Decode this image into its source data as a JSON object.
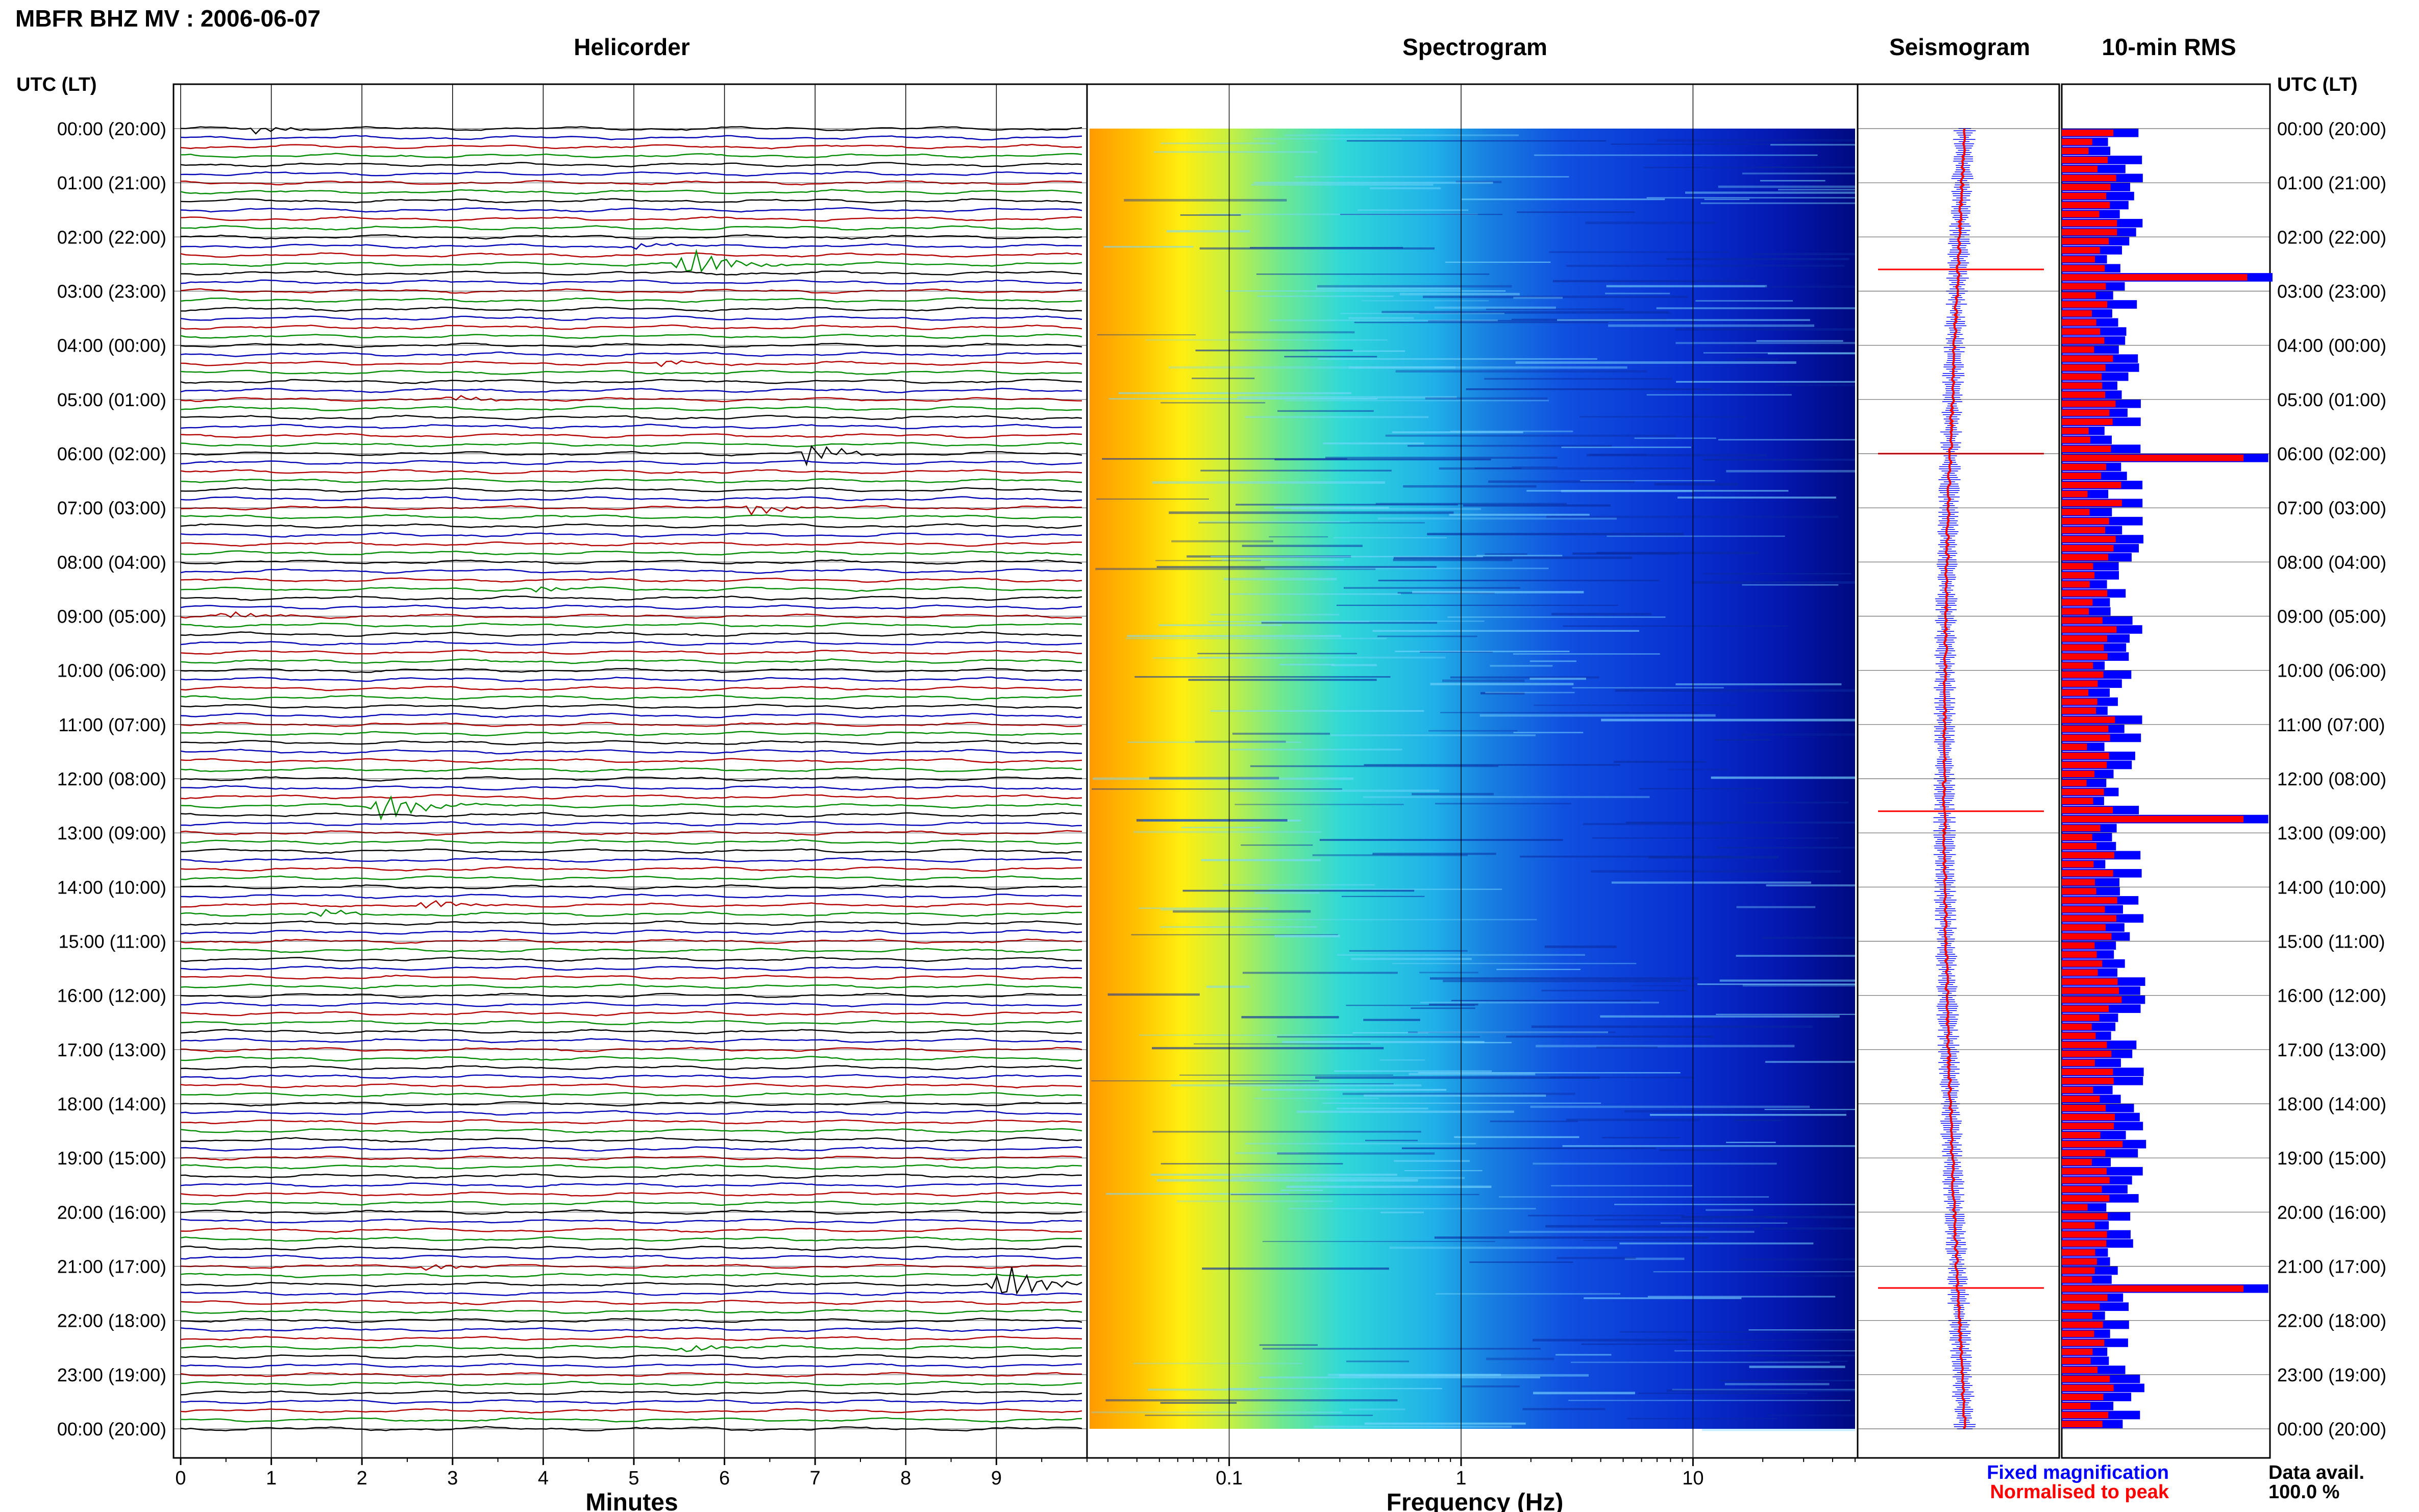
{
  "header": {
    "title": "MBFR BHZ MV : 2006-06-07",
    "utc_lt_label": "UTC (LT)"
  },
  "panels": {
    "helicorder": "Helicorder",
    "spectrogram": "Spectrogram",
    "seismogram": "Seismogram",
    "rms": "10-min RMS"
  },
  "axes": {
    "minutes_label": "Minutes",
    "frequency_label": "Frequency (Hz)",
    "minute_ticks": [
      "0",
      "1",
      "2",
      "3",
      "4",
      "5",
      "6",
      "7",
      "8",
      "9"
    ],
    "frequency_ticks": [
      "0.1",
      "1",
      "10"
    ]
  },
  "legend": {
    "fixed": "Fixed magnification",
    "normalised": "Normalised to peak",
    "data_avail_label": "Data avail.",
    "data_avail_value": "100.0 %"
  },
  "colors": {
    "trace_cycle": [
      "#000000",
      "#0000b4",
      "#b40000",
      "#008c00"
    ],
    "fixed": "#0000ff",
    "normalised": "#ff0000"
  },
  "chart_data": {
    "type": "helicorder",
    "time_labels": [
      "00:00 (20:00)",
      "01:00 (21:00)",
      "02:00 (22:00)",
      "03:00 (23:00)",
      "04:00 (00:00)",
      "05:00 (01:00)",
      "06:00 (02:00)",
      "07:00 (03:00)",
      "08:00 (04:00)",
      "09:00 (05:00)",
      "10:00 (06:00)",
      "11:00 (07:00)",
      "12:00 (08:00)",
      "13:00 (09:00)",
      "14:00 (10:00)",
      "15:00 (11:00)",
      "16:00 (12:00)",
      "17:00 (13:00)",
      "18:00 (14:00)",
      "19:00 (15:00)",
      "20:00 (16:00)",
      "21:00 (17:00)",
      "22:00 (18:00)",
      "23:00 (19:00)",
      "00:00 (20:00)"
    ],
    "xlim_minutes": [
      0,
      10
    ],
    "frequency_range_hz": [
      0.025,
      50
    ],
    "events": [
      {
        "hour": 0.0,
        "minute": 0.8,
        "amp": 0.6
      },
      {
        "hour": 2.1,
        "minute": 5.0,
        "amp": 0.5
      },
      {
        "hour": 2.5,
        "minute": 5.6,
        "amp": 2.6
      },
      {
        "hour": 4.3,
        "minute": 5.3,
        "amp": 0.5
      },
      {
        "hour": 5.0,
        "minute": 3.0,
        "amp": 0.5
      },
      {
        "hour": 6.0,
        "minute": 6.9,
        "amp": 1.8
      },
      {
        "hour": 7.0,
        "minute": 6.3,
        "amp": 1.0
      },
      {
        "hour": 8.5,
        "minute": 3.9,
        "amp": 0.4
      },
      {
        "hour": 9.0,
        "minute": 0.5,
        "amp": 0.6
      },
      {
        "hour": 12.5,
        "minute": 2.2,
        "amp": 2.4
      },
      {
        "hour": 14.3,
        "minute": 2.7,
        "amp": 0.7
      },
      {
        "hour": 14.5,
        "minute": 1.5,
        "amp": 0.6
      },
      {
        "hour": 21.4,
        "minute": 9.1,
        "amp": 3.2
      },
      {
        "hour": 21.0,
        "minute": 2.7,
        "amp": 0.5
      },
      {
        "hour": 22.5,
        "minute": 5.6,
        "amp": 0.6
      }
    ],
    "rms_spikes": [
      {
        "hour": 2.6,
        "level": 1.0
      },
      {
        "hour": 6.0,
        "level": 0.98
      },
      {
        "hour": 12.6,
        "level": 0.98
      },
      {
        "hour": 21.4,
        "level": 0.98
      }
    ]
  }
}
